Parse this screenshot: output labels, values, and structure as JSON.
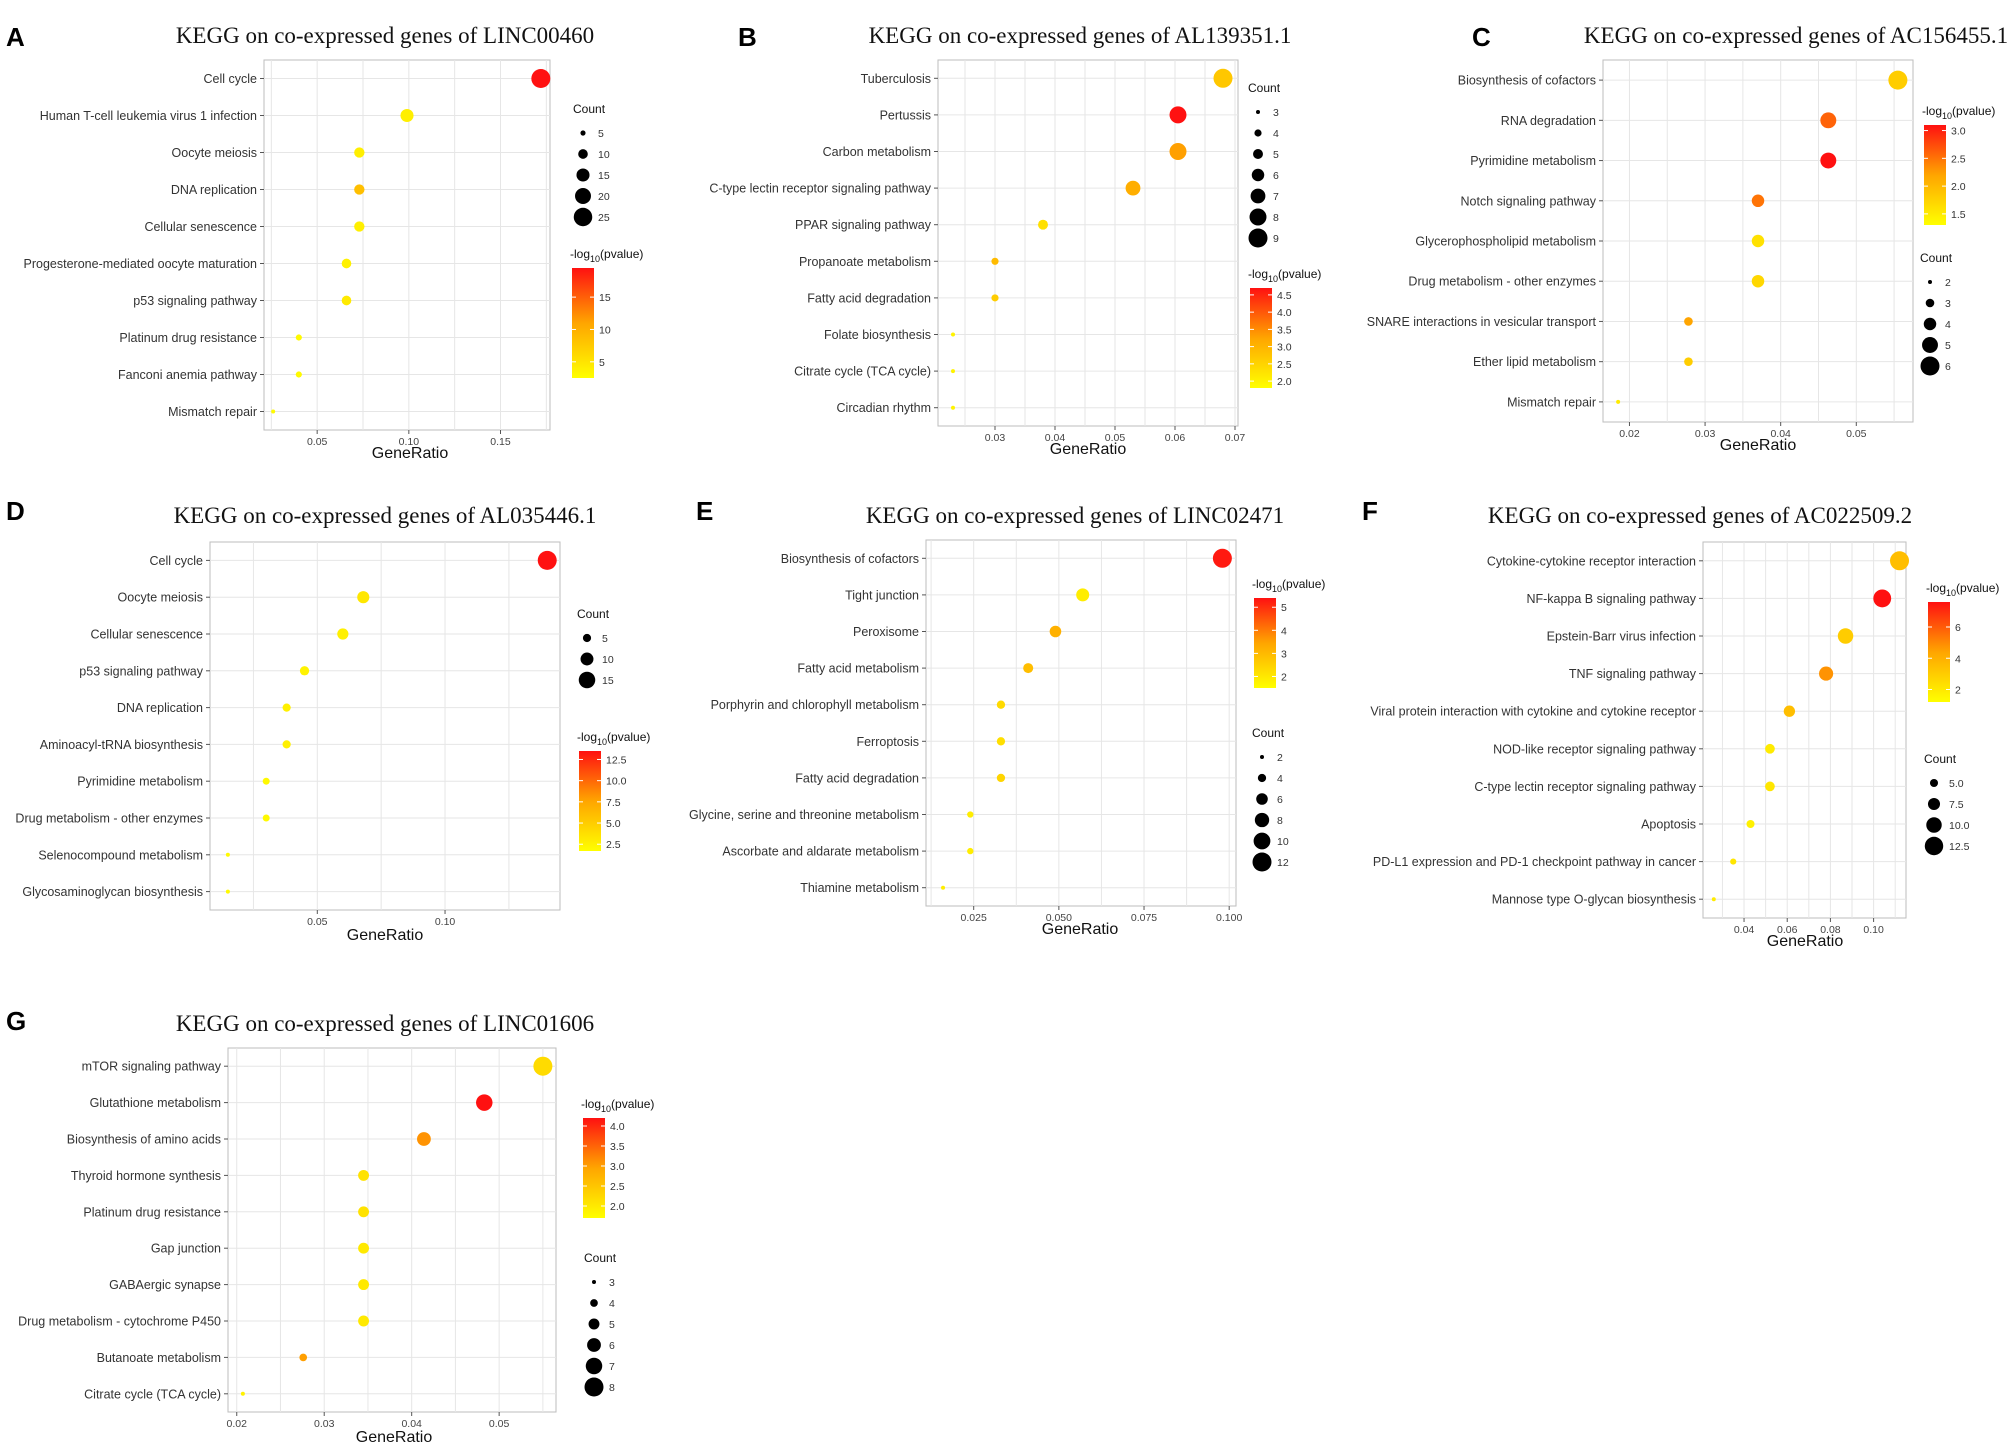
{
  "figure": {
    "colors": {
      "low": "#ffff00",
      "high": "#ff1111",
      "grid": "#e6e6e6",
      "border": "#bdbdbd"
    },
    "size_legend_title": "Count",
    "color_legend_title_prefix": "-log",
    "color_legend_title_sub": "10",
    "color_legend_title_suffix": "(pvalue)"
  },
  "chart_data": [
    {
      "panel": "A",
      "type": "scatter",
      "title": "KEGG on co-expressed genes of LINC00460",
      "xlabel": "GeneRatio",
      "xlim": [
        0.021,
        0.177
      ],
      "xticks": [
        0.05,
        0.1,
        0.15
      ],
      "xtick_labels": [
        "0.05",
        "0.10",
        "0.15"
      ],
      "categories": [
        "Cell cycle",
        "Human T-cell leukemia virus 1 infection",
        "Oocyte meiosis",
        "DNA replication",
        "Cellular senescence",
        "Progesterone-mediated oocyte maturation",
        "p53 signaling pathway",
        "Platinum drug resistance",
        "Fanconi anemia pathway",
        "Mismatch repair"
      ],
      "gene_ratio": [
        0.172,
        0.099,
        0.073,
        0.073,
        0.073,
        0.066,
        0.066,
        0.04,
        0.04,
        0.026
      ],
      "count": [
        26,
        15,
        11,
        11,
        11,
        10,
        10,
        6,
        6,
        4
      ],
      "neg_log10_p": [
        19.5,
        4.0,
        4.0,
        8.5,
        4.0,
        3.8,
        4.5,
        3.0,
        3.0,
        3.0
      ],
      "size_legend": [
        5,
        10,
        15,
        20,
        25
      ],
      "color_range": [
        2.5,
        19.5
      ],
      "color_ticks": [
        5,
        10,
        15
      ],
      "color_tick_labels": [
        "5",
        "10",
        "15"
      ]
    },
    {
      "panel": "B",
      "type": "scatter",
      "title": "KEGG on co-expressed genes of AL139351.1",
      "xlabel": "GeneRatio",
      "xlim": [
        0.0205,
        0.0705
      ],
      "xticks": [
        0.03,
        0.04,
        0.05,
        0.06,
        0.07
      ],
      "xtick_labels": [
        "0.03",
        "0.04",
        "0.05",
        "0.06",
        "0.07"
      ],
      "categories": [
        "Tuberculosis",
        "Pertussis",
        "Carbon metabolism",
        "C-type lectin receptor signaling pathway",
        "PPAR signaling pathway",
        "Propanoate metabolism",
        "Fatty acid degradation",
        "Folate biosynthesis",
        "Citrate cycle (TCA cycle)",
        "Circadian rhythm"
      ],
      "gene_ratio": [
        0.068,
        0.0605,
        0.0605,
        0.053,
        0.038,
        0.03,
        0.03,
        0.023,
        0.023,
        0.023
      ],
      "count": [
        9,
        8,
        8,
        7,
        5,
        4,
        4,
        3,
        3,
        3
      ],
      "neg_log10_p": [
        2.7,
        4.7,
        3.3,
        3.1,
        2.3,
        2.9,
        2.6,
        2.0,
        2.0,
        2.0
      ],
      "size_legend": [
        3,
        4,
        5,
        6,
        7,
        8,
        9
      ],
      "color_range": [
        1.8,
        4.7
      ],
      "color_ticks": [
        2.0,
        2.5,
        3.0,
        3.5,
        4.0,
        4.5
      ],
      "color_tick_labels": [
        "2.0",
        "2.5",
        "3.0",
        "3.5",
        "4.0",
        "4.5"
      ]
    },
    {
      "panel": "C",
      "type": "scatter",
      "title": "KEGG on co-expressed genes of AC156455.1",
      "xlabel": "GeneRatio",
      "xlim": [
        0.0165,
        0.0575
      ],
      "xticks": [
        0.02,
        0.03,
        0.04,
        0.05
      ],
      "xtick_labels": [
        "0.02",
        "0.03",
        "0.04",
        "0.05"
      ],
      "categories": [
        "Biosynthesis of cofactors",
        "RNA degradation",
        "Pyrimidine metabolism",
        "Notch signaling pathway",
        "Glycerophospholipid metabolism",
        "Drug metabolism - other enzymes",
        "SNARE interactions in vesicular transport",
        "Ether lipid metabolism",
        "Mismatch repair"
      ],
      "gene_ratio": [
        0.0555,
        0.0463,
        0.0463,
        0.037,
        0.037,
        0.037,
        0.0278,
        0.0278,
        0.0185
      ],
      "count": [
        6,
        5,
        5,
        4,
        4,
        4,
        3,
        3,
        2
      ],
      "neg_log10_p": [
        1.8,
        2.6,
        3.1,
        2.5,
        1.6,
        1.7,
        2.2,
        1.8,
        1.5
      ],
      "size_legend": [
        2,
        3,
        4,
        5,
        6
      ],
      "color_range": [
        1.3,
        3.1
      ],
      "color_ticks": [
        1.5,
        2.0,
        2.5,
        3.0
      ],
      "color_tick_labels": [
        "1.5",
        "2.0",
        "2.5",
        "3.0"
      ]
    },
    {
      "panel": "D",
      "type": "scatter",
      "title": "KEGG on co-expressed genes of AL035446.1",
      "xlabel": "GeneRatio",
      "xlim": [
        0.008,
        0.145
      ],
      "xticks": [
        0.05,
        0.1
      ],
      "xtick_labels": [
        "0.05",
        "0.10"
      ],
      "categories": [
        "Cell cycle",
        "Oocyte meiosis",
        "Cellular senescence",
        "p53 signaling pathway",
        "DNA replication",
        "Aminoacyl-tRNA biosynthesis",
        "Pyrimidine metabolism",
        "Drug metabolism - other enzymes",
        "Selenocompound metabolism",
        "Glycosaminoglycan biosynthesis"
      ],
      "gene_ratio": [
        0.14,
        0.068,
        0.06,
        0.045,
        0.038,
        0.038,
        0.03,
        0.03,
        0.015,
        0.015
      ],
      "count": [
        19,
        9,
        8,
        6,
        5,
        5,
        4,
        4,
        2,
        2
      ],
      "neg_log10_p": [
        13.5,
        3.3,
        2.7,
        2.5,
        2.7,
        2.7,
        2.1,
        2.1,
        2.0,
        2.0
      ],
      "size_legend": [
        5,
        10,
        15
      ],
      "color_range": [
        1.7,
        13.5
      ],
      "color_ticks": [
        2.5,
        5.0,
        7.5,
        10.0,
        12.5
      ],
      "color_tick_labels": [
        "2.5",
        "5.0",
        "7.5",
        "10.0",
        "12.5"
      ]
    },
    {
      "panel": "E",
      "type": "scatter",
      "title": "KEGG on co-expressed genes of LINC02471",
      "xlabel": "GeneRatio",
      "xlim": [
        0.011,
        0.102
      ],
      "xticks": [
        0.025,
        0.05,
        0.075,
        0.1
      ],
      "xtick_labels": [
        "0.025",
        "0.050",
        "0.075",
        "0.100"
      ],
      "categories": [
        "Biosynthesis of cofactors",
        "Tight junction",
        "Peroxisome",
        "Fatty acid metabolism",
        "Porphyrin and chlorophyll metabolism",
        "Ferroptosis",
        "Fatty acid degradation",
        "Glycine, serine and threonine metabolism",
        "Ascorbate and aldarate metabolism",
        "Thiamine metabolism"
      ],
      "gene_ratio": [
        0.098,
        0.057,
        0.049,
        0.041,
        0.033,
        0.033,
        0.033,
        0.024,
        0.024,
        0.016
      ],
      "count": [
        12,
        7,
        6,
        5,
        4,
        4,
        4,
        3,
        3,
        2
      ],
      "neg_log10_p": [
        5.3,
        1.9,
        3.2,
        2.9,
        2.3,
        2.2,
        2.4,
        1.9,
        1.9,
        1.9
      ],
      "size_legend": [
        2,
        4,
        6,
        8,
        10,
        12
      ],
      "color_range": [
        1.5,
        5.4
      ],
      "color_ticks": [
        2,
        3,
        4,
        5
      ],
      "color_tick_labels": [
        "2",
        "3",
        "4",
        "5"
      ]
    },
    {
      "panel": "F",
      "type": "scatter",
      "title": "KEGG on co-expressed genes of AC022509.2",
      "xlabel": "GeneRatio",
      "xlim": [
        0.021,
        0.115
      ],
      "xticks": [
        0.04,
        0.06,
        0.08,
        0.1
      ],
      "xtick_labels": [
        "0.04",
        "0.06",
        "0.08",
        "0.10"
      ],
      "categories": [
        "Cytokine-cytokine receptor interaction",
        "NF-kappa B signaling pathway",
        "Epstein-Barr virus infection",
        "TNF signaling pathway",
        "Viral protein interaction with cytokine and cytokine receptor",
        "NOD-like receptor signaling pathway",
        "C-type lectin receptor signaling pathway",
        "Apoptosis",
        "PD-L1 expression and PD-1 checkpoint pathway in cancer",
        "Mannose type O-glycan biosynthesis"
      ],
      "gene_ratio": [
        0.112,
        0.104,
        0.087,
        0.078,
        0.061,
        0.052,
        0.052,
        0.043,
        0.035,
        0.026
      ],
      "count": [
        13,
        12,
        10,
        9,
        7,
        6,
        6,
        5,
        4,
        3
      ],
      "neg_log10_p": [
        3.5,
        7.6,
        3.0,
        4.8,
        3.5,
        1.9,
        2.1,
        1.7,
        2.1,
        1.9
      ],
      "size_legend": [
        5.0,
        7.5,
        10.0,
        12.5
      ],
      "size_legend_labels": [
        "5.0",
        "7.5",
        "10.0",
        "12.5"
      ],
      "color_range": [
        1.2,
        7.6
      ],
      "color_ticks": [
        2,
        4,
        6
      ],
      "color_tick_labels": [
        "2",
        "4",
        "6"
      ]
    },
    {
      "panel": "G",
      "type": "scatter",
      "title": "KEGG on co-expressed genes of LINC01606",
      "xlabel": "GeneRatio",
      "xlim": [
        0.019,
        0.0565
      ],
      "xticks": [
        0.02,
        0.03,
        0.04,
        0.05
      ],
      "xtick_labels": [
        "0.02",
        "0.03",
        "0.04",
        "0.05"
      ],
      "categories": [
        "mTOR signaling pathway",
        "Glutathione metabolism",
        "Biosynthesis of amino acids",
        "Thyroid hormone synthesis",
        "Platinum drug resistance",
        "Gap junction",
        "GABAergic synapse",
        "Drug metabolism - cytochrome P450",
        "Butanoate metabolism",
        "Citrate cycle (TCA cycle)"
      ],
      "gene_ratio": [
        0.055,
        0.0483,
        0.0414,
        0.0345,
        0.0345,
        0.0345,
        0.0345,
        0.0345,
        0.0276,
        0.0207
      ],
      "count": [
        8,
        7,
        6,
        5,
        5,
        5,
        5,
        5,
        4,
        3
      ],
      "neg_log10_p": [
        2.2,
        4.2,
        3.1,
        2.1,
        2.1,
        2.0,
        2.0,
        2.0,
        3.0,
        1.9
      ],
      "size_legend": [
        3,
        4,
        5,
        6,
        7,
        8
      ],
      "color_range": [
        1.7,
        4.2
      ],
      "color_ticks": [
        2.0,
        2.5,
        3.0,
        3.5,
        4.0
      ],
      "color_tick_labels": [
        "2.0",
        "2.5",
        "3.0",
        "3.5",
        "4.0"
      ]
    }
  ]
}
